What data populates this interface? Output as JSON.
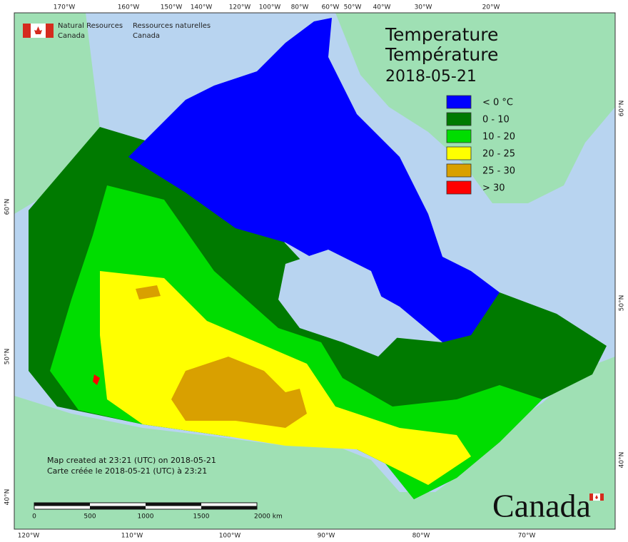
{
  "header": {
    "org_en_1": "Natural Resources",
    "org_en_2": "Canada",
    "org_fr_1": "Ressources naturelles",
    "org_fr_2": "Canada"
  },
  "title": {
    "en": "Temperature",
    "fr": "Température",
    "date": "2018-05-21"
  },
  "legend": [
    {
      "label": "< 0 °C",
      "color": "#0000ff"
    },
    {
      "label": "0 - 10",
      "color": "#007a00"
    },
    {
      "label": "10 - 20",
      "color": "#00dd00"
    },
    {
      "label": "20 - 25",
      "color": "#ffff00"
    },
    {
      "label": "25 - 30",
      "color": "#d9a000"
    },
    {
      "label": "> 30",
      "color": "#ff0000"
    }
  ],
  "graticule": {
    "top": [
      "170°W",
      "160°W",
      "150°W",
      "140°W",
      "120°W",
      "100°W",
      "80°W",
      "60°W",
      "50°W",
      "40°W",
      "30°W",
      "20°W"
    ],
    "bottom": [
      "120°W",
      "110°W",
      "100°W",
      "90°W",
      "80°W",
      "70°W"
    ],
    "left": [
      "60°N",
      "50°N",
      "40°N"
    ],
    "right": [
      "60°N",
      "50°N",
      "40°N"
    ]
  },
  "credits": [
    "Map created at 23:21 (UTC) on 2018-05-21",
    "Carte créée le 2018-05-21 (UTC) à 23:21"
  ],
  "scale_bar": [
    "0",
    "500",
    "1000",
    "1500",
    "2000 km"
  ],
  "wordmark": "Canada"
}
